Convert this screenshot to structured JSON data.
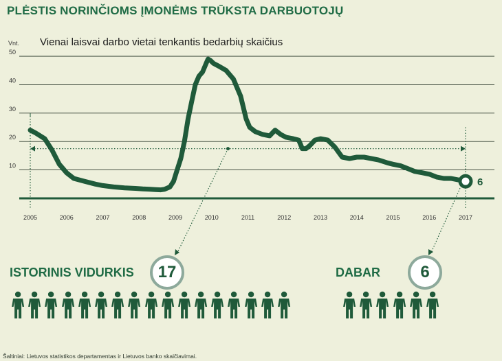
{
  "title": "PLĖSTIS NORINČIOMS ĮMONĖMS TRŪKSTA DARBUOTOJŲ",
  "chart_data": {
    "type": "line",
    "title": "Vienai laisvai darbo vietai tenkantis bedarbių skaičius",
    "ylabel": "Vnt.",
    "xlabel": "",
    "ylim": [
      0,
      50
    ],
    "xlim": [
      2005,
      2017.2
    ],
    "yticks": [
      10,
      20,
      30,
      40,
      50
    ],
    "xticks": [
      "2005",
      "2006",
      "2007",
      "2008",
      "2009",
      "2010",
      "2011",
      "2012",
      "2013",
      "2014",
      "2015",
      "2016",
      "2017"
    ],
    "grid": true,
    "color": "#1f5a3a",
    "series": [
      {
        "x": [
          2005.0,
          2005.15,
          2005.4,
          2005.6,
          2005.8,
          2006.0,
          2006.2,
          2006.5,
          2006.8,
          2007.0,
          2007.3,
          2007.6,
          2007.9,
          2008.1,
          2008.3,
          2008.45,
          2008.6,
          2008.7,
          2008.85,
          2008.95,
          2009.05,
          2009.15,
          2009.25,
          2009.35,
          2009.45,
          2009.55,
          2009.65,
          2009.75,
          2009.85,
          2009.9,
          2009.97,
          2010.05,
          2010.2,
          2010.4,
          2010.6,
          2010.8,
          2010.95,
          2011.05,
          2011.2,
          2011.4,
          2011.6,
          2011.75,
          2011.9,
          2012.05,
          2012.25,
          2012.4,
          2012.5,
          2012.6,
          2012.7,
          2012.85,
          2013.0,
          2013.2,
          2013.4,
          2013.6,
          2013.8,
          2014.0,
          2014.2,
          2014.4,
          2014.6,
          2014.85,
          2015.0,
          2015.2,
          2015.4,
          2015.6,
          2015.8,
          2016.0,
          2016.2,
          2016.4,
          2016.6,
          2016.8,
          2017.0
        ],
        "y": [
          24,
          23,
          21,
          17,
          12,
          9,
          7,
          6,
          5,
          4.5,
          4,
          3.7,
          3.5,
          3.3,
          3.2,
          3.1,
          3.0,
          3.2,
          4.0,
          6.0,
          10.0,
          14.0,
          20.0,
          28.0,
          34.0,
          40.0,
          43.0,
          44.5,
          47.5,
          49.0,
          48.5,
          47.5,
          46.5,
          45.0,
          42.0,
          36.0,
          28.0,
          25.0,
          23.5,
          22.5,
          22.0,
          24.0,
          22.5,
          21.5,
          21.0,
          20.5,
          17.5,
          17.5,
          18.5,
          20.5,
          21.0,
          20.5,
          18.0,
          14.5,
          14.0,
          14.5,
          14.5,
          14.0,
          13.5,
          12.5,
          12.0,
          11.5,
          10.5,
          9.5,
          9.0,
          8.5,
          7.5,
          7.0,
          7.0,
          6.5,
          6.0
        ]
      }
    ],
    "annotations": [
      {
        "text": "6",
        "x": 2017.0,
        "y": 6.0
      }
    ],
    "reference_lines": [
      {
        "label": "17",
        "value": 17
      }
    ]
  },
  "historical": {
    "label": "ISTORINIS VIDURKIS",
    "value": "17",
    "people_count": 17
  },
  "current": {
    "label": "DABAR",
    "value": "6",
    "people_count": 6
  },
  "source": "Šaltiniai: Lietuvos statistikos departamentas ir Lietuvos banko skaičiavimai."
}
